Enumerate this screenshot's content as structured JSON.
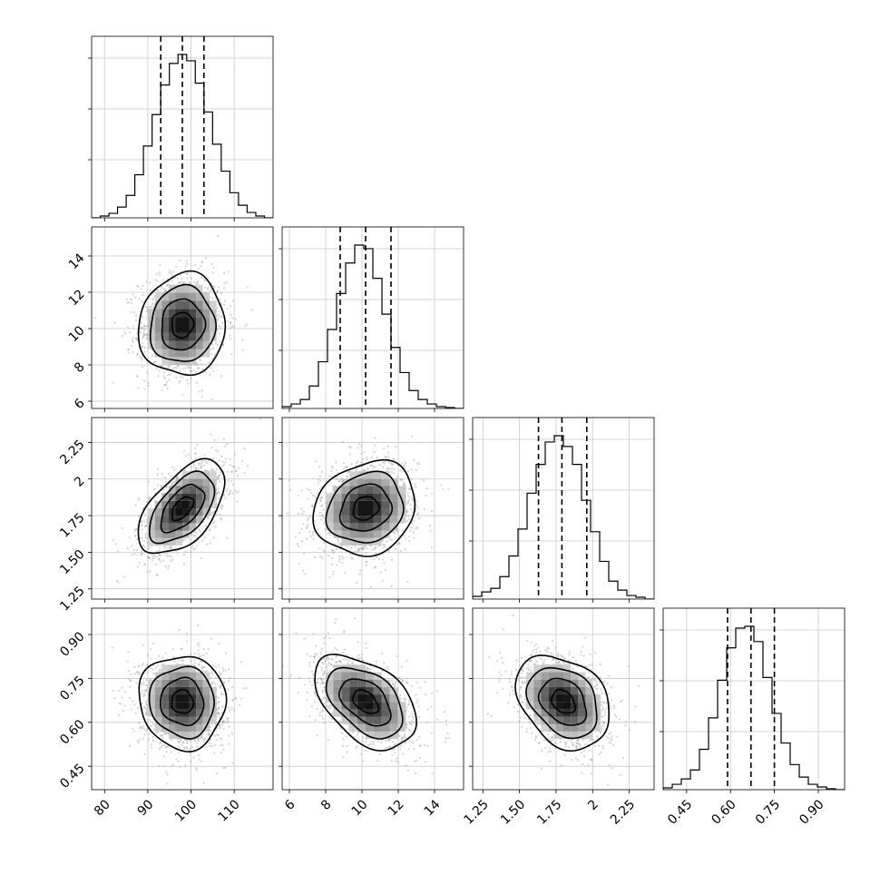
{
  "chart_data": {
    "type": "corner",
    "parameters": [
      {
        "ticks": [
          80,
          90,
          100,
          110
        ],
        "range": [
          77,
          119
        ],
        "hist": [
          0,
          2,
          5,
          12,
          25,
          48,
          80,
          115,
          148,
          172,
          182,
          175,
          150,
          118,
          82,
          52,
          28,
          14,
          6,
          2,
          0
        ],
        "quantiles": [
          93,
          98,
          103
        ],
        "mean": 98,
        "sd": 5
      },
      {
        "ticks": [
          6,
          8,
          10,
          12,
          14
        ],
        "range": [
          5.6,
          15.6
        ],
        "hist": [
          2,
          5,
          10,
          25,
          52,
          88,
          128,
          162,
          182,
          178,
          145,
          105,
          68,
          40,
          20,
          10,
          5,
          2,
          1,
          0
        ],
        "quantiles": [
          8.8,
          10.2,
          11.6
        ],
        "mean": 10.2,
        "sd": 1.4
      },
      {
        "ticks": [
          1.25,
          1.5,
          1.75,
          2.0,
          2.25
        ],
        "range": [
          1.18,
          2.42
        ],
        "hist": [
          3,
          8,
          12,
          25,
          48,
          78,
          118,
          150,
          175,
          182,
          170,
          150,
          110,
          75,
          42,
          20,
          10,
          4,
          2,
          0
        ],
        "quantiles": [
          1.63,
          1.79,
          1.96
        ],
        "mean": 1.8,
        "sd": 0.16
      },
      {
        "ticks": [
          0.45,
          0.6,
          0.75,
          0.9
        ],
        "range": [
          0.37,
          0.99
        ],
        "hist": [
          2,
          6,
          12,
          22,
          45,
          80,
          122,
          158,
          180,
          182,
          165,
          125,
          85,
          52,
          28,
          14,
          6,
          3,
          1,
          0
        ],
        "quantiles": [
          0.59,
          0.67,
          0.75
        ],
        "mean": 0.67,
        "sd": 0.08
      }
    ],
    "correlations": [
      {
        "i": 1,
        "j": 0,
        "rho": 0.05
      },
      {
        "i": 2,
        "j": 0,
        "rho": 0.55
      },
      {
        "i": 2,
        "j": 1,
        "rho": 0.15
      },
      {
        "i": 3,
        "j": 0,
        "rho": -0.05
      },
      {
        "i": 3,
        "j": 1,
        "rho": -0.45
      },
      {
        "i": 3,
        "j": 2,
        "rho": -0.3
      }
    ],
    "grid": true,
    "contour_levels_sigma": [
      0.5,
      1.0,
      1.5,
      2.0
    ]
  }
}
